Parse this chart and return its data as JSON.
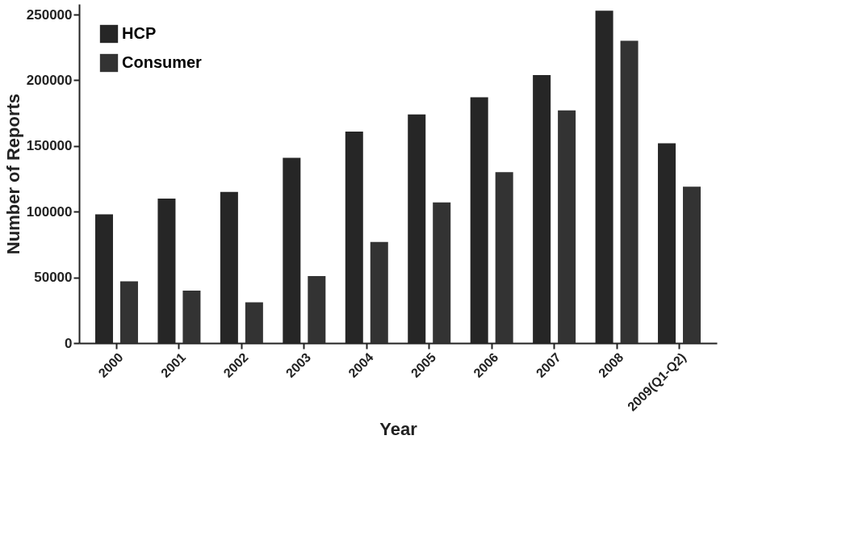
{
  "chart_data": {
    "type": "bar",
    "xlabel": "Year",
    "ylabel": "Number of Reports",
    "categories": [
      "2000",
      "2001",
      "2002",
      "2003",
      "2004",
      "2005",
      "2006",
      "2007",
      "2008",
      "2009(Q1-Q2)"
    ],
    "series": [
      {
        "name": "HCP",
        "color": "#262626",
        "values": [
          98000,
          110000,
          115000,
          141000,
          161000,
          174000,
          187000,
          204000,
          253000,
          152000
        ]
      },
      {
        "name": "Consumer",
        "color": "#333333",
        "values": [
          47000,
          40000,
          31000,
          51000,
          77000,
          107000,
          130000,
          177000,
          230000,
          119000
        ]
      }
    ],
    "ylim": [
      0,
      258000
    ],
    "yticks": [
      0,
      50000,
      100000,
      150000,
      200000,
      250000
    ],
    "grid": false,
    "legend": "top left"
  }
}
